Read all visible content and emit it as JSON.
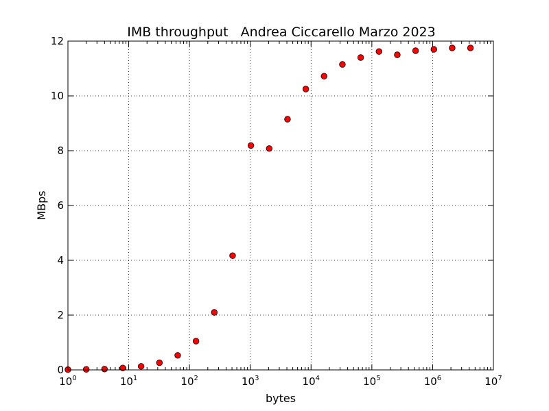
{
  "chart_data": {
    "type": "scatter",
    "title": "IMB throughput   Andrea Ciccarello Marzo 2023",
    "xlabel": "bytes",
    "ylabel": "MBps",
    "xscale": "log",
    "xlim": [
      1,
      10000000
    ],
    "ylim": [
      0,
      12
    ],
    "grid": true,
    "marker_color": "#ff0000",
    "x_ticks": [
      {
        "base": "10",
        "exp": "0",
        "value": 1
      },
      {
        "base": "10",
        "exp": "1",
        "value": 10
      },
      {
        "base": "10",
        "exp": "2",
        "value": 100
      },
      {
        "base": "10",
        "exp": "3",
        "value": 1000
      },
      {
        "base": "10",
        "exp": "4",
        "value": 10000
      },
      {
        "base": "10",
        "exp": "5",
        "value": 100000
      },
      {
        "base": "10",
        "exp": "6",
        "value": 1000000
      },
      {
        "base": "10",
        "exp": "7",
        "value": 10000000
      }
    ],
    "y_ticks": [
      "0",
      "2",
      "4",
      "6",
      "8",
      "10",
      "12"
    ],
    "series": [
      {
        "x": [
          1,
          2,
          4,
          8,
          16,
          32,
          64,
          128,
          256,
          512,
          1024,
          2048,
          4096,
          8192,
          16384,
          32768,
          65536,
          131072,
          262144,
          524288,
          1048576,
          2097152,
          4194304
        ],
        "y": [
          0.01,
          0.02,
          0.03,
          0.07,
          0.13,
          0.26,
          0.53,
          1.05,
          2.1,
          4.17,
          8.19,
          8.08,
          9.15,
          10.25,
          10.72,
          11.15,
          11.4,
          11.62,
          11.5,
          11.65,
          11.7,
          11.75,
          11.75
        ]
      }
    ]
  }
}
